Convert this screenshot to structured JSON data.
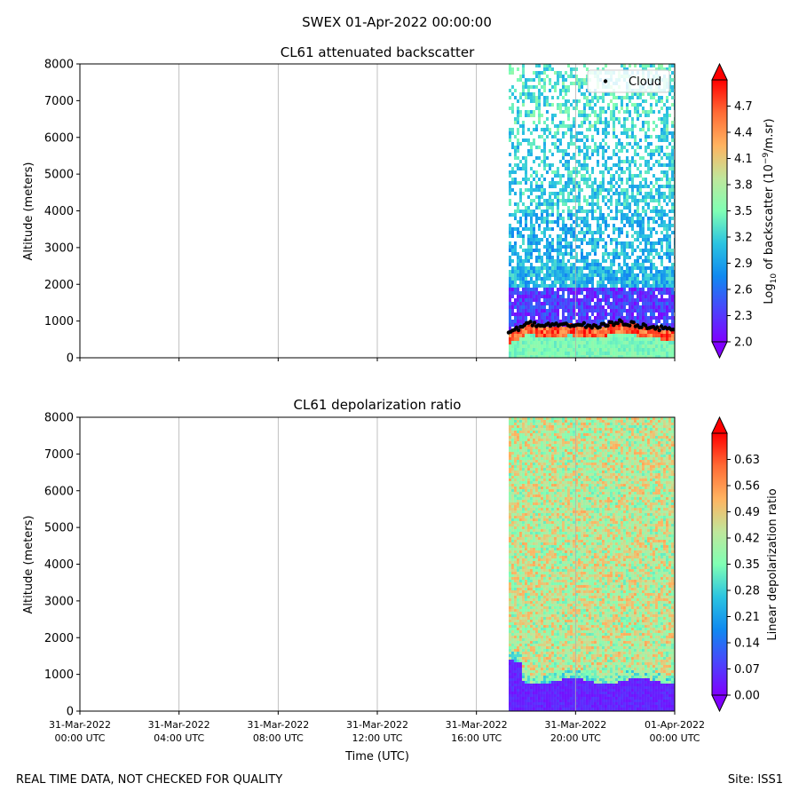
{
  "suptitle": "SWEX 01-Apr-2022 00:00:00",
  "footer_left": "REAL TIME DATA, NOT CHECKED FOR QUALITY",
  "footer_right": "Site: ISS1",
  "chart_data": [
    {
      "type": "heatmap",
      "title": "CL61 attenuated backscatter",
      "ylabel": "Altitude (meters)",
      "xlabel": "",
      "x_tick_labels": [],
      "ylim": [
        0,
        8000
      ],
      "yticks": [
        0,
        1000,
        2000,
        3000,
        4000,
        5000,
        6000,
        7000,
        8000
      ],
      "colorbar": {
        "label_parts": [
          "Log",
          "10",
          " of backscatter (10",
          "−9",
          "/m.sr)"
        ],
        "range": [
          2.0,
          5.0
        ],
        "ticks": [
          "2.0",
          "2.3",
          "2.6",
          "2.9",
          "3.2",
          "3.5",
          "3.8",
          "4.1",
          "4.4",
          "4.7"
        ],
        "colormap": "rainbow"
      },
      "data_start": "31-Mar-2022 17:18 UTC",
      "data_end": "01-Apr-2022 00:00 UTC",
      "legend": {
        "entries": [
          "Cloud"
        ],
        "location": "upper right"
      },
      "cloud_base": {
        "name": "Cloud",
        "color": "#000000",
        "times_hours": [
          17.3,
          17.6,
          17.9,
          18.2,
          18.5,
          18.8,
          19.1,
          19.4,
          19.7,
          20.0,
          20.3,
          20.6,
          20.9,
          21.2,
          21.5,
          21.8,
          22.1,
          22.4,
          22.7,
          23.0,
          23.3,
          23.6,
          23.9
        ],
        "altitudes": [
          700,
          760,
          900,
          940,
          860,
          880,
          900,
          840,
          920,
          880,
          900,
          850,
          860,
          900,
          920,
          980,
          940,
          900,
          870,
          850,
          810,
          790,
          780
        ]
      }
    },
    {
      "type": "heatmap",
      "title": "CL61 depolarization ratio",
      "ylabel": "Altitude (meters)",
      "xlabel": "Time (UTC)",
      "x_tick_labels": [
        [
          "31-Mar-2022",
          "00:00 UTC"
        ],
        [
          "31-Mar-2022",
          "04:00 UTC"
        ],
        [
          "31-Mar-2022",
          "08:00 UTC"
        ],
        [
          "31-Mar-2022",
          "12:00 UTC"
        ],
        [
          "31-Mar-2022",
          "16:00 UTC"
        ],
        [
          "31-Mar-2022",
          "20:00 UTC"
        ],
        [
          "01-Apr-2022",
          "00:00 UTC"
        ]
      ],
      "ylim": [
        0,
        8000
      ],
      "yticks": [
        0,
        1000,
        2000,
        3000,
        4000,
        5000,
        6000,
        7000,
        8000
      ],
      "colorbar": {
        "label_parts": [
          "Linear depolarization ratio"
        ],
        "range": [
          0.0,
          0.7
        ],
        "ticks": [
          "0.00",
          "0.07",
          "0.14",
          "0.21",
          "0.28",
          "0.35",
          "0.42",
          "0.49",
          "0.56",
          "0.63"
        ],
        "colormap": "rainbow"
      },
      "data_start": "31-Mar-2022 17:18 UTC",
      "data_end": "01-Apr-2022 00:00 UTC",
      "low_layer_top_altitude": 850
    }
  ]
}
